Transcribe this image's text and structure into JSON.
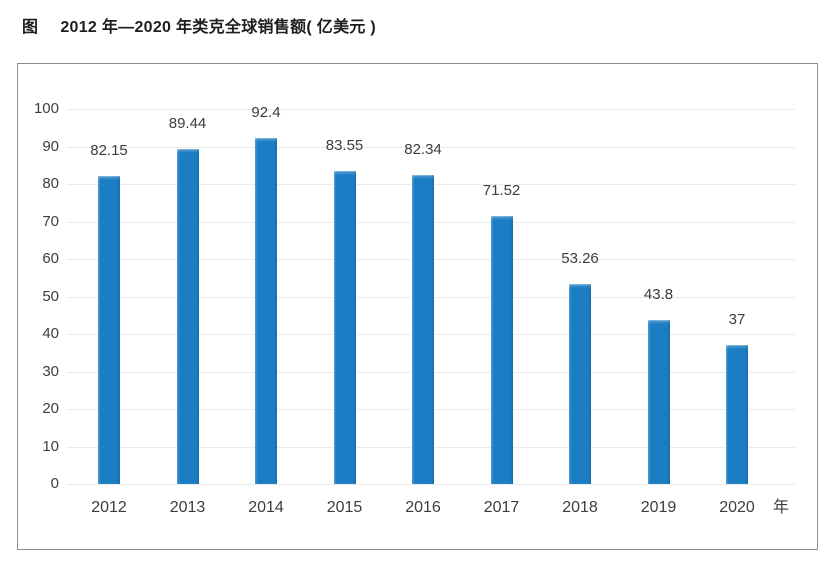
{
  "figure": {
    "tag": "图",
    "title": "2012 年—2020 年类克全球销售额( 亿美元 )"
  },
  "chart_data": {
    "type": "bar",
    "title": "2012 年—2020 年类克全球销售额( 亿美元 )",
    "categories": [
      "2012",
      "2013",
      "2014",
      "2015",
      "2016",
      "2017",
      "2018",
      "2019",
      "2020"
    ],
    "values": [
      82.15,
      89.44,
      92.4,
      83.55,
      82.34,
      71.52,
      53.26,
      43.8,
      37
    ],
    "value_labels": [
      "82.15",
      "89.44",
      "92.4",
      "83.55",
      "82.34",
      "71.52",
      "53.26",
      "43.8",
      "37"
    ],
    "x_axis_unit": "年",
    "xlabel": "",
    "ylabel": "",
    "y_ticks": [
      0,
      10,
      20,
      30,
      40,
      50,
      60,
      70,
      80,
      90,
      100
    ],
    "ylim": [
      0,
      100
    ],
    "grid": true,
    "legend": false,
    "colors": {
      "bar": "#1B7EC4",
      "bar_highlight": "#9AC6E6",
      "bar_highlight_mid": "#4E99D1",
      "gridline": "#EBEBEB",
      "border": "#8D8D8D",
      "text": "#3D3D3D",
      "caption_text": "#1E1E1E"
    }
  }
}
